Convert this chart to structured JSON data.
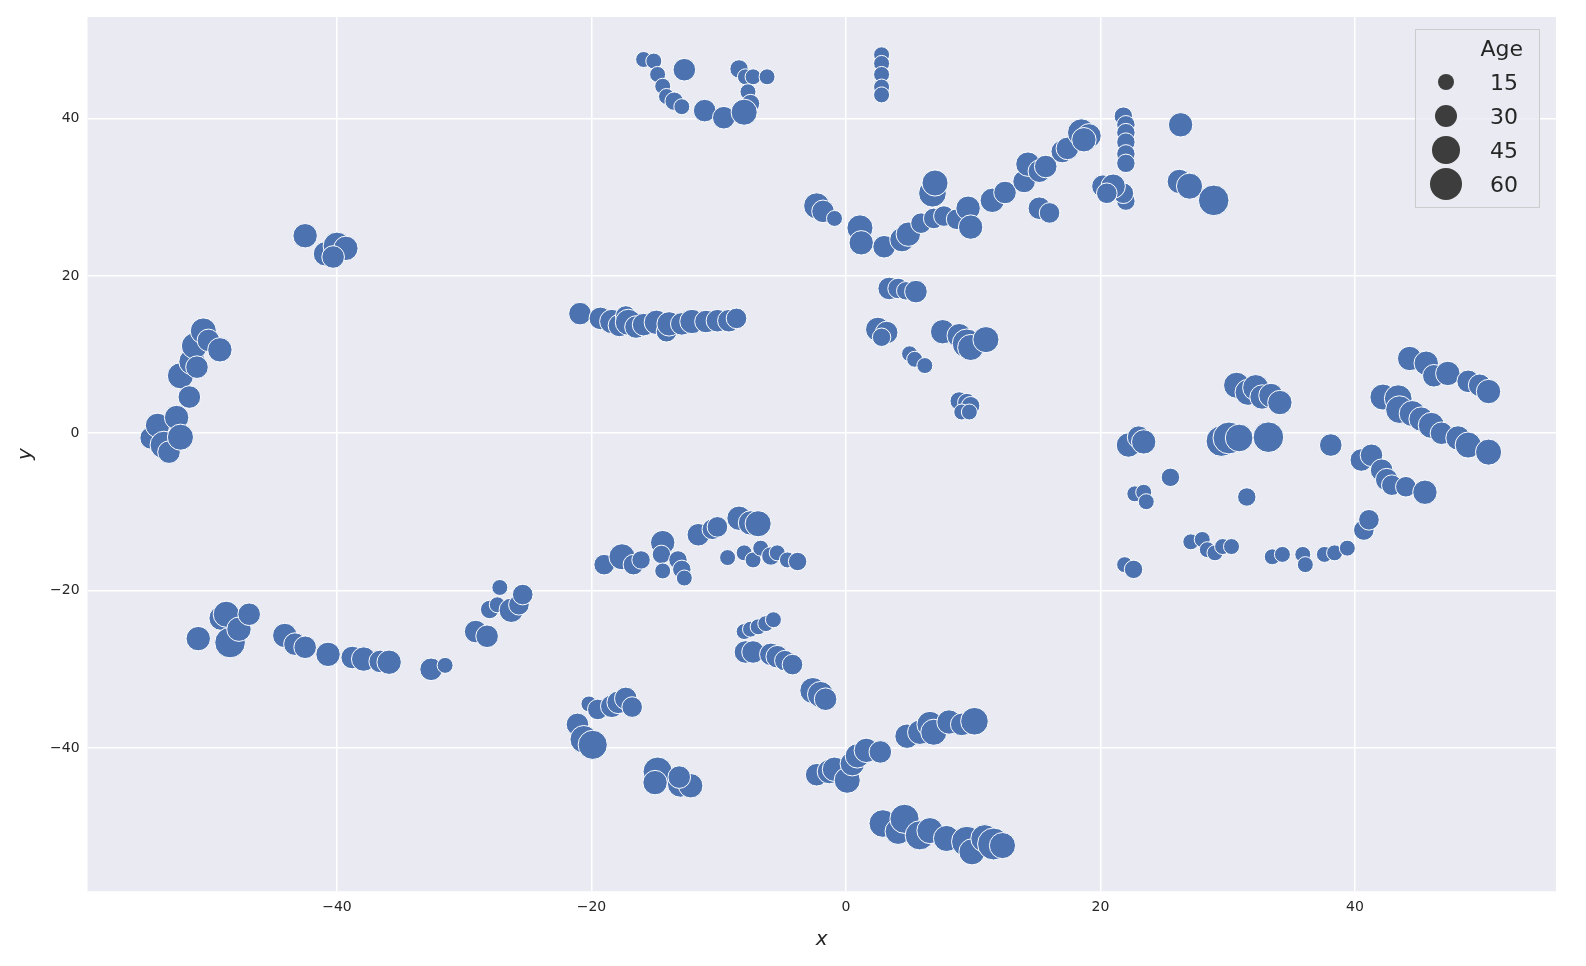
{
  "chart_data": {
    "type": "bubble",
    "xlabel": "x",
    "ylabel": "y",
    "legend_title": "Age",
    "grid": true,
    "color": "#4c72b0",
    "xlim": [
      -59.6,
      55.8
    ],
    "ylim": [
      -58.2,
      52.9
    ],
    "xticks": [
      {
        "value": -40,
        "label": "−40"
      },
      {
        "value": -20,
        "label": "−20"
      },
      0,
      20,
      40
    ],
    "yticks": [
      {
        "value": -40,
        "label": "−40"
      },
      {
        "value": -20,
        "label": "−20"
      },
      0,
      20,
      40
    ],
    "size_legend": [
      15,
      30,
      45,
      60
    ],
    "x": [
      -54.6,
      -54.1,
      -53.6,
      -53.2,
      -52.6,
      -52.3,
      -52.3,
      -51.6,
      -51.4,
      -51.2,
      -50.5,
      -50.1,
      -49.2,
      -51.0,
      -42.5,
      -40.9,
      -40,
      -39.3,
      -40.3,
      -15.9,
      -15.1,
      -14.8,
      -14.4,
      -14.1,
      -13.5,
      -12.9,
      -12.7,
      -11.1,
      -9.6,
      -8.4,
      -7.9,
      -7.3,
      -6.2,
      -7.7,
      -7.5,
      -8.0,
      2.8,
      2.8,
      2.8,
      2.8,
      2.8,
      -2.3,
      -1.8,
      -0.9,
      1.1,
      1.2,
      3.0,
      4.4,
      4.9,
      5.9,
      6.9,
      6.8,
      7.0,
      7.7,
      8.7,
      9.6,
      9.8,
      11.5,
      12.5,
      14.0,
      14.3,
      15.2,
      15.7,
      15.2,
      16.0,
      17.0,
      17.4,
      18.5,
      19.1,
      18.7,
      21.8,
      22.0,
      22.0,
      22.0,
      22.0,
      22.0,
      22.0,
      21.8,
      20.2,
      21.0,
      20.5,
      26.3,
      26.2,
      27.0,
      28.9,
      3.4,
      4.1,
      4.7,
      5.5,
      2.5,
      3.2,
      2.8,
      5.0,
      5.4,
      6.2,
      7.6,
      8.9,
      9.5,
      9.8,
      11.0,
      8.9,
      9.5,
      9.8,
      9.1,
      9.7,
      -20.9,
      -19.3,
      -18.4,
      -17.8,
      -17.3,
      -17.1,
      -16.5,
      -15.9,
      -14.9,
      -14.1,
      -13.9,
      -12.9,
      -12.1,
      -11.0,
      -10.1,
      -9.2,
      -8.6,
      30.7,
      31.6,
      32.2,
      32.7,
      33.4,
      34.1,
      29.5,
      30.1,
      30.9,
      33.2,
      38.1,
      22.2,
      23.0,
      23.4,
      25.5,
      31.5,
      22.7,
      23.4,
      23.6,
      21.9,
      22.6,
      27.1,
      28.0,
      28.4,
      29.0,
      29.6,
      30.3,
      33.5,
      34.3,
      35.9,
      36.1,
      37.6,
      38.4,
      39.4,
      40.7,
      41.1,
      40.5,
      41.3,
      42.1,
      42.5,
      42.9,
      44.0,
      45.5,
      42.2,
      43.4,
      43.5,
      44.5,
      45.2,
      46.0,
      46.8,
      44.3,
      45.6,
      46.2,
      47.3,
      48.9,
      49.8,
      50.5,
      48.1,
      48.9,
      50.5,
      -50.9,
      -49.1,
      -48.7,
      -48.4,
      -47.7,
      -46.9,
      -44.1,
      -43.3,
      -42.5,
      -40.7,
      -38.8,
      -37.9,
      -36.6,
      -35.9,
      -32.6,
      -31.5,
      -29.1,
      -28.2,
      -28.0,
      -27.4,
      -27.2,
      -26.3,
      -25.7,
      -25.4,
      -20.2,
      -19.5,
      -18.4,
      -17.9,
      -17.3,
      -16.8,
      -21.1,
      -20.6,
      -19.9,
      -14.8,
      -15.0,
      -13.0,
      -12.2,
      -13.1,
      -19.0,
      -17.6,
      -16.7,
      -16.1,
      -14.4,
      -14.5,
      -14.4,
      -13.2,
      -12.9,
      -12.7,
      -11.6,
      -10.5,
      -10.1,
      -8.4,
      -7.5,
      -6.9,
      -9.3,
      -8.0,
      -7.3,
      -6.7,
      -5.9,
      -5.4,
      -4.6,
      -3.8,
      -8.0,
      -7.5,
      -6.9,
      -6.3,
      -5.7,
      -7.9,
      -7.3,
      -5.9,
      -5.4,
      -4.8,
      -4.2,
      -2.6,
      -2.0,
      -1.6,
      -2.3,
      -1.3,
      -0.9,
      0.1,
      0.5,
      0.9,
      1.6,
      2.7,
      4.8,
      5.8,
      6.6,
      6.9,
      8.1,
      9.1,
      10.1,
      2.9,
      4.1,
      4.6,
      5.8,
      6.6,
      7.9,
      9.5,
      9.9,
      10.9,
      11.6,
      12.3
    ],
    "values": [
      -0.6,
      1.0,
      -1.5,
      -2.4,
      2.0,
      -0.5,
      7.3,
      4.6,
      9.1,
      11.1,
      13.0,
      11.8,
      10.6,
      8.4,
      25.1,
      22.8,
      23.8,
      23.5,
      22.4,
      47.5,
      47.3,
      45.6,
      44.1,
      42.8,
      42.2,
      41.5,
      46.2,
      41.0,
      40.1,
      46.3,
      45.3,
      45.3,
      45.3,
      43.4,
      41.9,
      40.8,
      48.1,
      47.0,
      45.6,
      44.0,
      43.0,
      28.9,
      28.2,
      27.3,
      26.1,
      24.2,
      23.7,
      24.6,
      25.3,
      26.7,
      27.3,
      30.5,
      31.8,
      27.6,
      27.2,
      28.6,
      26.2,
      29.6,
      30.6,
      32.0,
      34.2,
      33.3,
      33.9,
      28.6,
      28.0,
      35.8,
      36.2,
      38.2,
      37.8,
      37.3,
      40.3,
      39.2,
      38.2,
      37.0,
      35.5,
      34.3,
      29.5,
      30.5,
      31.4,
      31.4,
      30.5,
      39.2,
      32.0,
      31.4,
      29.6,
      18.4,
      18.4,
      18.1,
      18.0,
      13.2,
      12.8,
      12.2,
      10.1,
      9.4,
      8.6,
      12.9,
      12.4,
      11.4,
      10.9,
      11.9,
      4.1,
      3.9,
      3.5,
      2.7,
      2.7,
      15.2,
      14.6,
      14.2,
      13.7,
      14.9,
      14.1,
      13.5,
      13.8,
      14.1,
      12.9,
      13.9,
      13.9,
      14.2,
      14.2,
      14.3,
      14.3,
      14.6,
      6.1,
      5.2,
      5.8,
      4.6,
      4.8,
      3.9,
      -1.0,
      -0.6,
      -0.6,
      -0.5,
      -1.5,
      -1.5,
      -0.5,
      -1.1,
      -5.6,
      -8.1,
      -7.7,
      -7.5,
      -8.7,
      -16.7,
      -17.3,
      -13.8,
      -13.5,
      -14.8,
      -15.2,
      -14.4,
      -14.4,
      -15.7,
      -15.4,
      -15.4,
      -16.7,
      -15.4,
      -15.2,
      -14.6,
      -12.3,
      -11.0,
      -3.4,
      -2.8,
      -4.7,
      -5.9,
      -6.6,
      -6.8,
      -7.5,
      4.6,
      4.4,
      3.0,
      2.5,
      1.8,
      1.0,
      0,
      9.5,
      8.9,
      7.3,
      7.6,
      6.6,
      6.1,
      5.3,
      -0.6,
      -1.5,
      -2.4,
      -26.1,
      -23.5,
      -23.0,
      -26.6,
      -24.9,
      -23.0,
      -25.7,
      -26.8,
      -27.2,
      -28.1,
      -28.5,
      -28.7,
      -29.0,
      -29.1,
      -30.0,
      -29.5,
      -25.2,
      -25.8,
      -22.4,
      -21.8,
      -19.6,
      -22.5,
      -21.8,
      -20.5,
      -34.4,
      -35.1,
      -34.7,
      -34.2,
      -33.7,
      -34.8,
      -37.0,
      -38.9,
      -39.6,
      -43.0,
      -44.4,
      -44.6,
      -44.8,
      -43.7,
      -16.7,
      -15.7,
      -16.7,
      -16.1,
      -13.9,
      -15.4,
      -17.5,
      -16.1,
      -17.3,
      -18.4,
      -12.9,
      -12.2,
      -11.9,
      -10.8,
      -11.4,
      -11.5,
      -15.8,
      -15.2,
      -16.1,
      -14.6,
      -15.6,
      -15.2,
      -16.1,
      -16.3,
      -25.2,
      -24.9,
      -24.6,
      -24.2,
      -23.7,
      -27.8,
      -27.8,
      -28.1,
      -28.4,
      -28.9,
      -29.4,
      -32.7,
      -33.2,
      -33.8,
      -43.4,
      -43.0,
      -42.7,
      -44.1,
      -42.0,
      -41.0,
      -40.3,
      -40.5,
      -38.5,
      -38.0,
      -37.0,
      -38.0,
      -36.7,
      -37.0,
      -36.6,
      -49.6,
      -50.6,
      -49.0,
      -51.1,
      -50.5,
      -51.5,
      -51.9,
      -53.2,
      -51.5,
      -52.2,
      -52.4
    ],
    "sizes": [
      30,
      35,
      45,
      30,
      35,
      40,
      40,
      30,
      40,
      40,
      40,
      30,
      35,
      30,
      35,
      35,
      45,
      35,
      30,
      15,
      15,
      15,
      15,
      15,
      20,
      15,
      30,
      30,
      30,
      20,
      15,
      15,
      15,
      15,
      20,
      40,
      15,
      15,
      15,
      15,
      15,
      40,
      30,
      15,
      40,
      35,
      30,
      35,
      35,
      25,
      25,
      45,
      40,
      25,
      25,
      35,
      35,
      35,
      30,
      30,
      35,
      30,
      30,
      30,
      25,
      30,
      30,
      45,
      35,
      35,
      20,
      20,
      20,
      20,
      20,
      20,
      20,
      25,
      30,
      35,
      25,
      35,
      35,
      40,
      55,
      30,
      25,
      20,
      30,
      35,
      30,
      20,
      15,
      15,
      15,
      35,
      35,
      50,
      40,
      40,
      20,
      20,
      20,
      15,
      15,
      30,
      30,
      35,
      30,
      25,
      40,
      30,
      30,
      35,
      25,
      35,
      30,
      35,
      30,
      30,
      30,
      25,
      40,
      40,
      40,
      35,
      35,
      35,
      55,
      60,
      45,
      55,
      30,
      35,
      30,
      35,
      20,
      20,
      15,
      15,
      15,
      15,
      20,
      15,
      15,
      15,
      15,
      15,
      15,
      15,
      15,
      15,
      15,
      15,
      15,
      15,
      25,
      25,
      30,
      30,
      30,
      30,
      25,
      25,
      35,
      40,
      45,
      45,
      40,
      35,
      40,
      30,
      35,
      35,
      30,
      35,
      30,
      30,
      35,
      35,
      40,
      40,
      35,
      35,
      40,
      55,
      35,
      30,
      35,
      30,
      30,
      35,
      30,
      35,
      30,
      35,
      30,
      15,
      30,
      30,
      20,
      15,
      15,
      35,
      25,
      25,
      15,
      25,
      30,
      30,
      30,
      25,
      30,
      45,
      50,
      50,
      35,
      40,
      35,
      30,
      25,
      40,
      25,
      20,
      35,
      20,
      15,
      20,
      20,
      15,
      30,
      25,
      25,
      35,
      35,
      40,
      15,
      15,
      15,
      15,
      20,
      15,
      15,
      20,
      15,
      15,
      15,
      15,
      15,
      30,
      30,
      30,
      30,
      25,
      25,
      40,
      40,
      30,
      30,
      35,
      35,
      40,
      35,
      35,
      35,
      30,
      35,
      35,
      40,
      40,
      35,
      30,
      45,
      45,
      40,
      50,
      50,
      40,
      40,
      55,
      40,
      45,
      60,
      40
    ]
  }
}
